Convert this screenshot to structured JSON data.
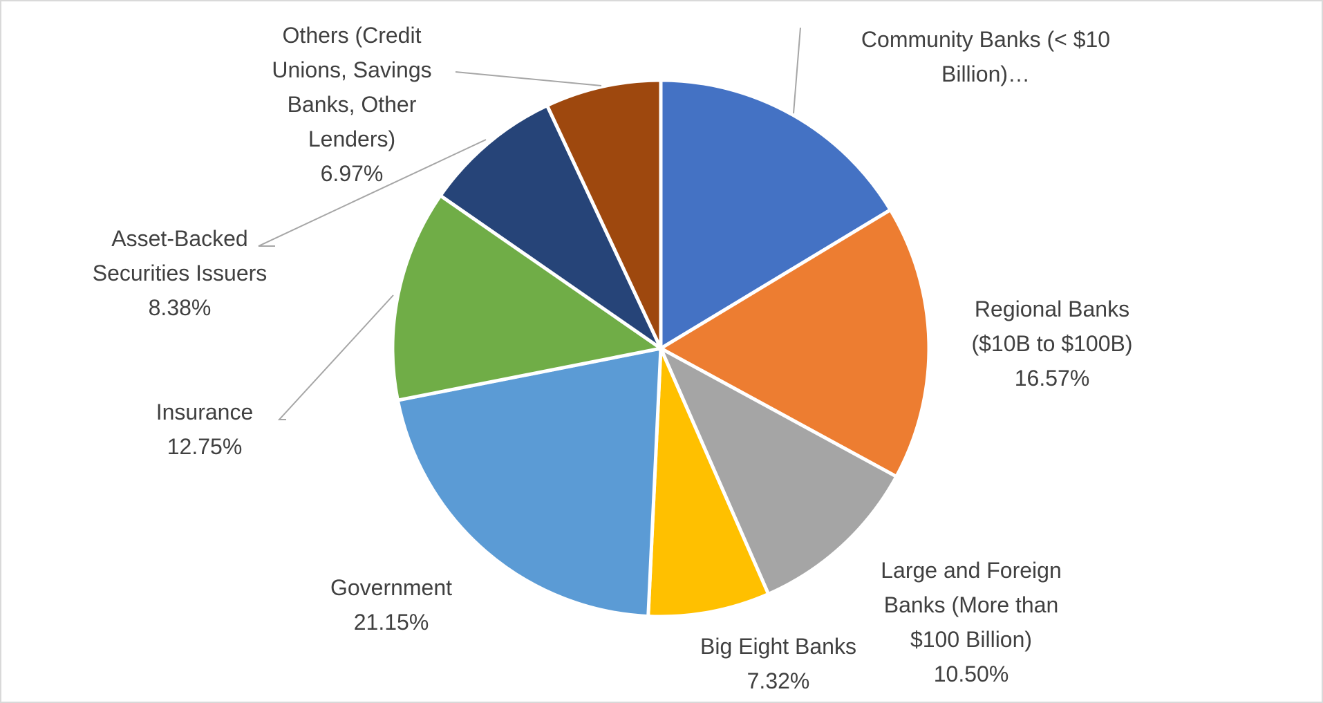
{
  "chart_data": {
    "type": "pie",
    "slices": [
      {
        "name_lines": [
          "Community Banks (< $10",
          "Billion)…"
        ],
        "percent_label": "",
        "value": 16.36,
        "color": "#4472C4"
      },
      {
        "name_lines": [
          "Regional Banks",
          "($10B to $100B)"
        ],
        "percent_label": "16.57%",
        "value": 16.57,
        "color": "#ED7D31"
      },
      {
        "name_lines": [
          "Large and Foreign",
          "Banks (More than",
          "$100 Billion)"
        ],
        "percent_label": "10.50%",
        "value": 10.5,
        "color": "#A5A5A5"
      },
      {
        "name_lines": [
          "Big Eight Banks"
        ],
        "percent_label": "7.32%",
        "value": 7.32,
        "color": "#FFC000"
      },
      {
        "name_lines": [
          "Government"
        ],
        "percent_label": "21.15%",
        "value": 21.15,
        "color": "#5B9BD5"
      },
      {
        "name_lines": [
          "Insurance"
        ],
        "percent_label": "12.75%",
        "value": 12.75,
        "color": "#70AD47"
      },
      {
        "name_lines": [
          "Asset-Backed",
          "Securities Issuers"
        ],
        "percent_label": "8.38%",
        "value": 8.38,
        "color": "#264478"
      },
      {
        "name_lines": [
          "Others (Credit",
          "Unions, Savings",
          "Banks, Other",
          "Lenders)"
        ],
        "percent_label": "6.97%",
        "value": 6.97,
        "color": "#9E480E"
      }
    ],
    "start_angle_deg": 0,
    "direction": "clockwise",
    "legend": "none",
    "data_labels": "outside-with-leader-lines"
  }
}
